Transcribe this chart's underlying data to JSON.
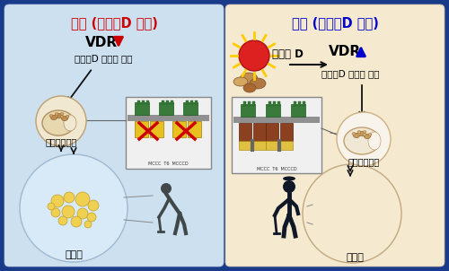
{
  "title_left": "노인 (비타민D 부족)",
  "title_right": "노인 (비타민D 보충)",
  "left_vdr": "VDR",
  "left_vdr_sub": "비타민D 수용체 감소",
  "right_vdr": "VDR",
  "right_vdr_sub": "비타민D 수용체 증가",
  "left_mito": "미토콘드리아",
  "right_mito": "미토콘드리아",
  "left_liver": "지방간",
  "right_liver": "정상간",
  "vitaminD": "비타민 D",
  "bg_outer": "#1a3a8a",
  "bg_left": "#cce0f0",
  "bg_right": "#f5ead0",
  "title_left_color": "#cc0000",
  "title_right_color": "#0000cc",
  "arrow_down_color": "#cc0000",
  "arrow_up_color": "#0000cc",
  "arrow_black": "#111111",
  "sun_color": "#dd2020",
  "sun_ray_color": "#ffcc00",
  "liver_fatty_color": "#d4a040",
  "liver_healthy_color": "#883020",
  "mito_color": "#f0e0c0",
  "panel_bg": "#f5f5f5",
  "figsize": [
    5.0,
    3.02
  ],
  "dpi": 100
}
